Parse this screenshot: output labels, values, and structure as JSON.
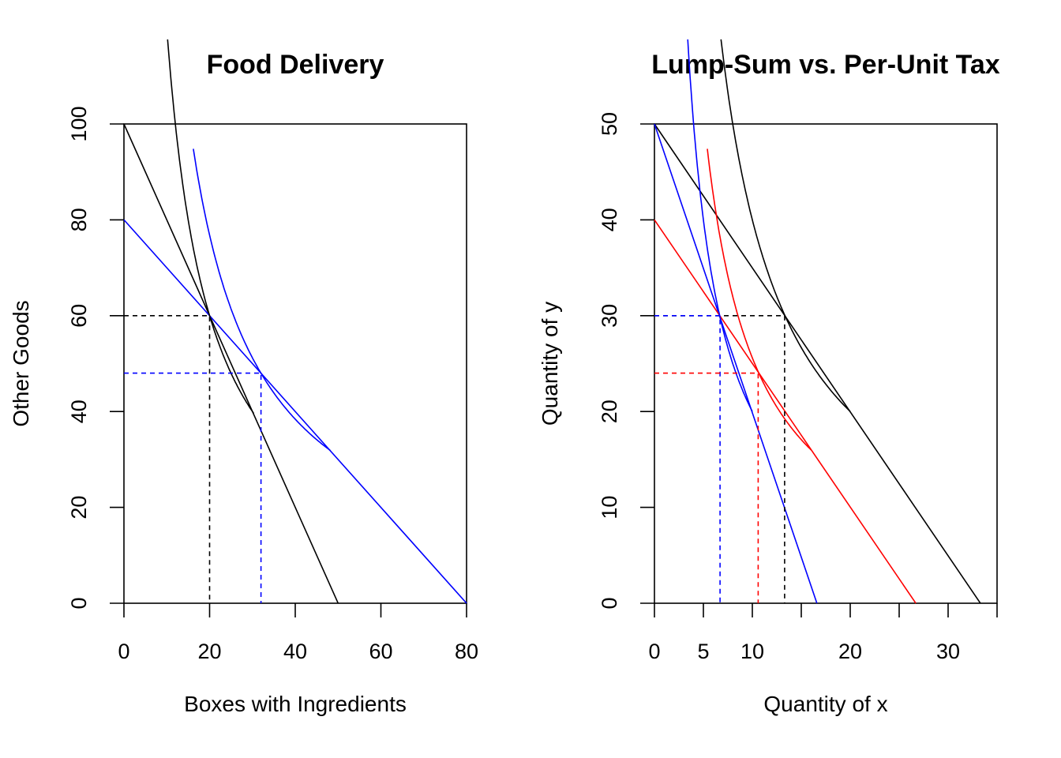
{
  "chart_data": [
    {
      "type": "line",
      "title": "Food Delivery",
      "xlabel": "Boxes with Ingredients",
      "ylabel": "Other Goods",
      "xlim": [
        0,
        80
      ],
      "ylim": [
        0,
        100
      ],
      "x_ticks": [
        0,
        20,
        40,
        60,
        80
      ],
      "y_ticks": [
        0,
        20,
        40,
        60,
        80,
        100
      ],
      "grid": false,
      "series": [
        {
          "color": "#000000",
          "style": "solid",
          "points": [
            [
              0,
              100
            ],
            [
              50,
              0
            ]
          ]
        },
        {
          "color": "#0000ff",
          "style": "solid",
          "points": [
            [
              0,
              80
            ],
            [
              80,
              0
            ]
          ]
        },
        {
          "color": "#000000",
          "style": "solid",
          "curve": "indifference",
          "k": 1200,
          "x_range": [
            10.2,
            30.3
          ]
        },
        {
          "color": "#0000ff",
          "style": "solid",
          "curve": "indifference",
          "k": 1536,
          "x_range": [
            16.2,
            48.2
          ]
        },
        {
          "color": "#000000",
          "style": "dashed",
          "points": [
            [
              0,
              60
            ],
            [
              20,
              60
            ],
            [
              20,
              0
            ]
          ]
        },
        {
          "color": "#0000ff",
          "style": "dashed",
          "points": [
            [
              0,
              48
            ],
            [
              32,
              48
            ],
            [
              32,
              0
            ]
          ]
        }
      ]
    },
    {
      "type": "line",
      "title": "Lump-Sum vs. Per-Unit Tax",
      "xlabel": "Quantity of x",
      "ylabel": "Quantity of y",
      "xlim": [
        0,
        35
      ],
      "ylim": [
        0,
        50
      ],
      "x_ticks": [
        0,
        5,
        10,
        15,
        20,
        25,
        30,
        35
      ],
      "x_tick_labels": [
        "0",
        "5",
        "10",
        "",
        "20",
        "",
        "30",
        ""
      ],
      "y_ticks": [
        0,
        10,
        20,
        30,
        40,
        50
      ],
      "grid": false,
      "series": [
        {
          "color": "#000000",
          "style": "solid",
          "points": [
            [
              0,
              50
            ],
            [
              33.3,
              0
            ]
          ]
        },
        {
          "color": "#0000ff",
          "style": "solid",
          "points": [
            [
              0,
              50
            ],
            [
              16.6,
              0
            ]
          ]
        },
        {
          "color": "#ff0000",
          "style": "solid",
          "points": [
            [
              0,
              40
            ],
            [
              26.7,
              0
            ]
          ]
        },
        {
          "color": "#000000",
          "style": "solid",
          "curve": "indifference",
          "k": 400,
          "x_range": [
            6.8,
            20
          ]
        },
        {
          "color": "#0000ff",
          "style": "solid",
          "curve": "indifference",
          "k": 200,
          "x_range": [
            3.4,
            10
          ]
        },
        {
          "color": "#ff0000",
          "style": "solid",
          "curve": "indifference",
          "k": 256,
          "x_range": [
            5.4,
            16
          ]
        },
        {
          "color": "#000000",
          "style": "dashed",
          "points": [
            [
              0,
              30
            ],
            [
              13.3,
              30
            ],
            [
              13.3,
              0
            ]
          ]
        },
        {
          "color": "#0000ff",
          "style": "dashed",
          "points": [
            [
              0,
              30
            ],
            [
              6.7,
              30
            ],
            [
              6.7,
              0
            ]
          ]
        },
        {
          "color": "#ff0000",
          "style": "dashed",
          "points": [
            [
              0,
              24
            ],
            [
              10.6,
              24
            ],
            [
              10.6,
              0
            ]
          ]
        }
      ]
    }
  ]
}
